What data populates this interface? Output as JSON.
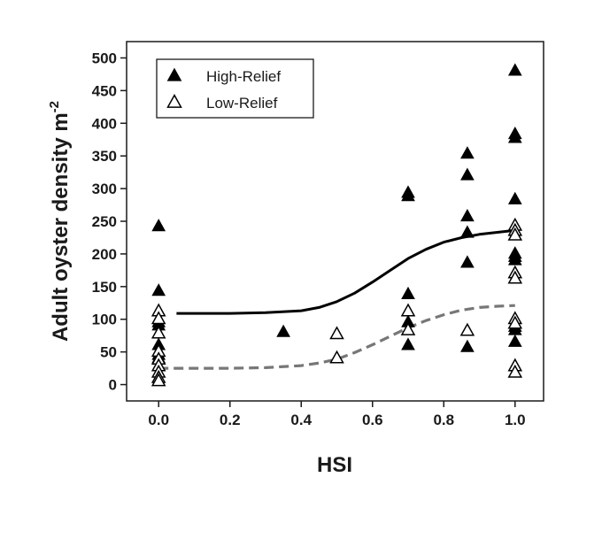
{
  "chart_data": {
    "type": "scatter",
    "title": "",
    "xlabel": "HSI",
    "ylabel": "Adult oyster density m",
    "ylabel_sup": "-2",
    "xlim": [
      -0.09,
      1.08
    ],
    "ylim": [
      -25,
      525
    ],
    "x_ticks": [
      0.0,
      0.2,
      0.4,
      0.6,
      0.8,
      1.0
    ],
    "x_tick_labels": [
      "0.0",
      "0.2",
      "0.4",
      "0.6",
      "0.8",
      "1.0"
    ],
    "y_ticks": [
      0,
      50,
      100,
      150,
      200,
      250,
      300,
      350,
      400,
      450,
      500
    ],
    "y_tick_labels": [
      "0",
      "50",
      "100",
      "150",
      "200",
      "250",
      "300",
      "350",
      "400",
      "450",
      "500"
    ],
    "grid": false,
    "legend_position": "top-left",
    "series": [
      {
        "name": "High-Relief",
        "marker": "filled-triangle",
        "color": "#000000",
        "points": [
          [
            0.0,
            242
          ],
          [
            0.0,
            143
          ],
          [
            0.0,
            100
          ],
          [
            0.0,
            95
          ],
          [
            0.0,
            90
          ],
          [
            0.0,
            60
          ],
          [
            0.0,
            50
          ],
          [
            0.0,
            45
          ],
          [
            0.0,
            40
          ],
          [
            0.35,
            80
          ],
          [
            0.7,
            293
          ],
          [
            0.7,
            288
          ],
          [
            0.7,
            138
          ],
          [
            0.7,
            95
          ],
          [
            0.7,
            60
          ],
          [
            0.866,
            353
          ],
          [
            0.866,
            320
          ],
          [
            0.866,
            257
          ],
          [
            0.866,
            232
          ],
          [
            0.866,
            186
          ],
          [
            0.866,
            57
          ],
          [
            1.0,
            480
          ],
          [
            1.0,
            383
          ],
          [
            1.0,
            377
          ],
          [
            1.0,
            283
          ],
          [
            1.0,
            200
          ],
          [
            1.0,
            195
          ],
          [
            1.0,
            190
          ],
          [
            1.0,
            170
          ],
          [
            1.0,
            88
          ],
          [
            1.0,
            83
          ],
          [
            1.0,
            65
          ]
        ]
      },
      {
        "name": "Low-Relief",
        "marker": "open-triangle",
        "color": "#000000",
        "points": [
          [
            0.0,
            112
          ],
          [
            0.0,
            100
          ],
          [
            0.0,
            78
          ],
          [
            0.0,
            50
          ],
          [
            0.0,
            38
          ],
          [
            0.0,
            28
          ],
          [
            0.0,
            18
          ],
          [
            0.0,
            10
          ],
          [
            0.0,
            5
          ],
          [
            0.5,
            77
          ],
          [
            0.5,
            40
          ],
          [
            0.7,
            112
          ],
          [
            0.7,
            83
          ],
          [
            0.866,
            82
          ],
          [
            1.0,
            243
          ],
          [
            1.0,
            235
          ],
          [
            1.0,
            228
          ],
          [
            1.0,
            170
          ],
          [
            1.0,
            162
          ],
          [
            1.0,
            100
          ],
          [
            1.0,
            93
          ],
          [
            1.0,
            28
          ],
          [
            1.0,
            18
          ]
        ]
      }
    ],
    "fit_lines": [
      {
        "style": "solid",
        "color": "#000000",
        "x": [
          0.05,
          0.1,
          0.2,
          0.3,
          0.4,
          0.45,
          0.5,
          0.55,
          0.6,
          0.65,
          0.7,
          0.75,
          0.8,
          0.85,
          0.9,
          0.95,
          1.0
        ],
        "y": [
          109,
          109,
          109,
          110,
          113,
          118,
          127,
          140,
          157,
          175,
          193,
          207,
          218,
          225,
          230,
          233,
          236
        ]
      },
      {
        "style": "dashed",
        "color": "#777777",
        "x": [
          0.0,
          0.1,
          0.2,
          0.3,
          0.4,
          0.45,
          0.5,
          0.55,
          0.6,
          0.65,
          0.7,
          0.75,
          0.8,
          0.85,
          0.9,
          0.95,
          1.0
        ],
        "y": [
          25,
          25,
          25,
          26,
          29,
          33,
          39,
          49,
          61,
          74,
          87,
          98,
          107,
          114,
          118,
          120,
          121
        ]
      }
    ]
  }
}
